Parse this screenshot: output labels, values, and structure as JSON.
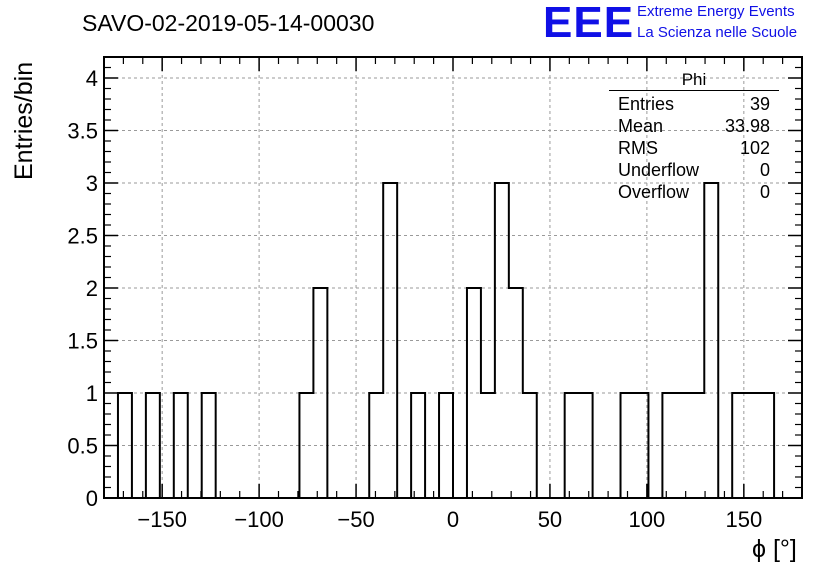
{
  "title": "SAVO-02-2019-05-14-00030",
  "logo": {
    "mark": "EEE",
    "line1": "Extreme Energy Events",
    "line2": "La Scienza nelle Scuole",
    "color": "#1010e6"
  },
  "stats_box": {
    "title": "Phi",
    "rows": [
      {
        "key": "Entries",
        "value": "39"
      },
      {
        "key": "Mean",
        "value": "33.98"
      },
      {
        "key": "RMS",
        "value": "102"
      },
      {
        "key": "Underflow",
        "value": "0"
      },
      {
        "key": "Overflow",
        "value": "0"
      }
    ]
  },
  "chart_data": {
    "type": "bar",
    "style": "step-histogram",
    "title": "SAVO-02-2019-05-14-00030",
    "xlabel": "ϕ [°]",
    "ylabel": "Entries/bin",
    "xlim": [
      -180,
      180
    ],
    "ylim": [
      0,
      4.2
    ],
    "bin_width": 7.2,
    "x_ticks": [
      -150,
      -100,
      -50,
      0,
      50,
      100,
      150
    ],
    "x_tick_labels": [
      "−150",
      "−100",
      "−50",
      "0",
      "50",
      "100",
      "150"
    ],
    "y_ticks": [
      0,
      0.5,
      1,
      1.5,
      2,
      2.5,
      3,
      3.5,
      4
    ],
    "y_tick_labels": [
      "0",
      "0.5",
      "1",
      "1.5",
      "2",
      "2.5",
      "3",
      "3.5",
      "4"
    ],
    "grid": true,
    "bin_edges": [
      -172.8,
      -165.6,
      -158.4,
      -151.2,
      -144.0,
      -136.8,
      -129.6,
      -122.4,
      -115.2,
      -108.0,
      -100.8,
      -93.6,
      -86.4,
      -79.2,
      -72.0,
      -64.8,
      -57.6,
      -50.4,
      -43.2,
      -36.0,
      -28.8,
      -21.6,
      -14.4,
      -7.2,
      0.0,
      7.2,
      14.4,
      21.6,
      28.8,
      36.0,
      43.2,
      50.4,
      57.6,
      64.8,
      72.0,
      79.2,
      86.4,
      93.6,
      100.8,
      108.0,
      115.2,
      122.4,
      129.6,
      136.8,
      144.0,
      151.2,
      158.4,
      165.6
    ],
    "counts": [
      1,
      0,
      1,
      0,
      1,
      0,
      1,
      0,
      0,
      0,
      0,
      0,
      0,
      1,
      2,
      0,
      0,
      0,
      1,
      3,
      0,
      1,
      0,
      1,
      0,
      2,
      1,
      3,
      2,
      1,
      0,
      0,
      1,
      1,
      0,
      0,
      1,
      1,
      0,
      1,
      1,
      1,
      3,
      0,
      1,
      1,
      1
    ]
  },
  "colors": {
    "line": "#000000",
    "grid": "#9a9a9a"
  }
}
